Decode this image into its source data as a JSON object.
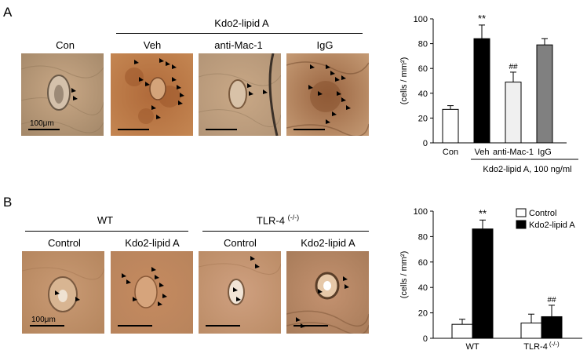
{
  "panel_a": {
    "letter": "A",
    "group_label": "Kdo2-lipid A",
    "image_labels": [
      "Con",
      "Veh",
      "anti-Mac-1",
      "IgG"
    ],
    "scale_bar_label": "100μm"
  },
  "panel_b": {
    "letter": "B",
    "group_labels": [
      "WT",
      "TLR-4"
    ],
    "group_label_superscript": "(-/-)",
    "image_labels": [
      "Control",
      "Kdo2-lipid A",
      "Control",
      "Kdo2-lipid A"
    ],
    "scale_bar_label": "100μm"
  },
  "chart_data": [
    {
      "type": "bar",
      "categories": [
        "Con",
        "Veh",
        "anti-Mac-1",
        "IgG"
      ],
      "values": [
        27,
        84,
        49,
        79
      ],
      "errors": [
        3,
        11,
        8,
        5
      ],
      "significance": [
        "",
        "**",
        "##",
        ""
      ],
      "bar_colors": [
        "#ffffff",
        "#000000",
        "#f0f0f0",
        "#808080"
      ],
      "ylabel": "(cells / mm²)",
      "ylim": [
        0,
        100
      ],
      "yticks": [
        0,
        20,
        40,
        60,
        80,
        100
      ],
      "xlabel": "Kdo2-lipid A, 100 ng/ml"
    },
    {
      "type": "bar",
      "categories": [
        "WT",
        "TLR-4"
      ],
      "category_superscript": [
        "",
        "(-/-)"
      ],
      "series": [
        {
          "name": "Control",
          "color": "#ffffff",
          "values": [
            11,
            12
          ],
          "errors": [
            4,
            7
          ],
          "significance": [
            "",
            ""
          ]
        },
        {
          "name": "Kdo2-lipid A",
          "color": "#000000",
          "values": [
            86,
            17
          ],
          "errors": [
            7,
            9
          ],
          "significance": [
            "**",
            "##"
          ]
        }
      ],
      "ylabel": "(cells / mm²)",
      "ylim": [
        0,
        100
      ],
      "yticks": [
        0,
        20,
        40,
        60,
        80,
        100
      ],
      "legend_position": "top-right"
    }
  ]
}
